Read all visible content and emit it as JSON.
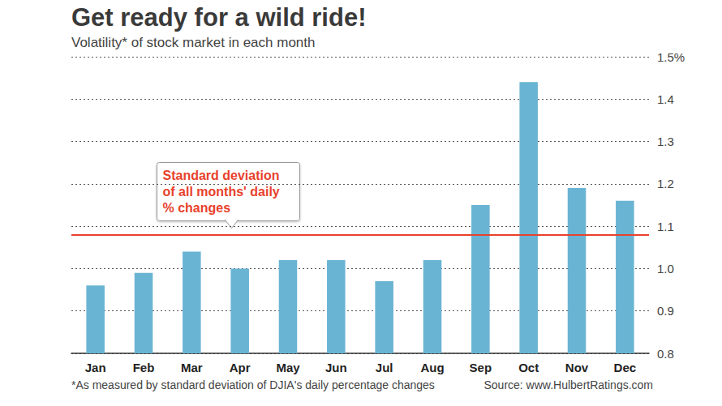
{
  "chart_data": {
    "type": "bar",
    "title": "Get ready for a wild ride!",
    "subtitle": "Volatility* of stock market in each month",
    "categories": [
      "Jan",
      "Feb",
      "Mar",
      "Apr",
      "May",
      "Jun",
      "Jul",
      "Aug",
      "Sep",
      "Oct",
      "Nov",
      "Dec"
    ],
    "values": [
      0.96,
      0.99,
      1.04,
      1.0,
      1.02,
      1.02,
      0.97,
      1.02,
      1.15,
      1.44,
      1.19,
      1.16
    ],
    "color": "#6ab4d3",
    "ylim": [
      0.8,
      1.5
    ],
    "yticks": [
      0.8,
      0.9,
      {
        "value": 1,
        "label": "1.0"
      },
      1.1,
      1.2,
      1.3,
      1.4,
      {
        "value": 1.5,
        "label": "1.5%"
      }
    ],
    "grid": true,
    "reference_line": {
      "value": 1.077,
      "label": "Standard deviation\nof all months' daily\n% changes",
      "color": "#e8412c"
    },
    "footnote": "*As measured by standard deviation of DJIA's daily percentage changes",
    "source": "Source: www.HulbertRatings.com"
  }
}
